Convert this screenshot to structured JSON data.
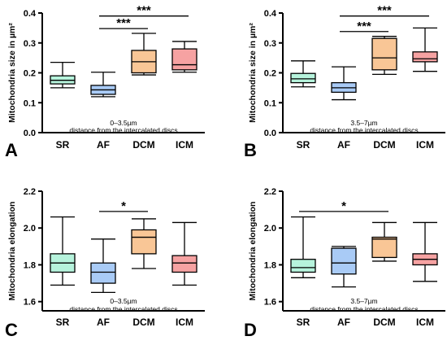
{
  "chart_data": [
    {
      "panel": "A",
      "type": "box",
      "ylabel": "Mitochondria size in µm²",
      "ylim": [
        0.0,
        0.4
      ],
      "yticks": [
        "0.0",
        "0.1",
        "0.2",
        "0.3",
        "0.4"
      ],
      "categories": [
        "SR",
        "AF",
        "DCM",
        "ICM"
      ],
      "caption_line1": "0–3.5µm",
      "caption_line2": "distance from the intercalated discs",
      "boxes": [
        {
          "min": 0.15,
          "q1": 0.163,
          "median": 0.175,
          "q3": 0.19,
          "max": 0.235
        },
        {
          "min": 0.12,
          "q1": 0.128,
          "median": 0.143,
          "q3": 0.158,
          "max": 0.202
        },
        {
          "min": 0.193,
          "q1": 0.2,
          "median": 0.237,
          "q3": 0.275,
          "max": 0.332
        },
        {
          "min": 0.202,
          "q1": 0.21,
          "median": 0.227,
          "q3": 0.28,
          "max": 0.305
        }
      ],
      "significance": [
        {
          "from": 1,
          "to": 3,
          "label": "***",
          "y": 0.39
        },
        {
          "from": 1,
          "to": 2,
          "label": "***",
          "y": 0.348
        }
      ]
    },
    {
      "panel": "B",
      "type": "box",
      "ylabel": "Mitochondria size in µm²",
      "ylim": [
        0.0,
        0.4
      ],
      "yticks": [
        "0.0",
        "0.1",
        "0.2",
        "0.3",
        "0.4"
      ],
      "categories": [
        "SR",
        "AF",
        "DCM",
        "ICM"
      ],
      "caption_line1": "3.5–7µm",
      "caption_line2": "distance from the intercalated discs",
      "boxes": [
        {
          "min": 0.153,
          "q1": 0.167,
          "median": 0.18,
          "q3": 0.198,
          "max": 0.24
        },
        {
          "min": 0.11,
          "q1": 0.135,
          "median": 0.15,
          "q3": 0.167,
          "max": 0.22
        },
        {
          "min": 0.195,
          "q1": 0.21,
          "median": 0.25,
          "q3": 0.315,
          "max": 0.322
        },
        {
          "min": 0.205,
          "q1": 0.237,
          "median": 0.247,
          "q3": 0.27,
          "max": 0.35
        }
      ],
      "significance": [
        {
          "from": 1,
          "to": 3,
          "label": "***",
          "y": 0.39
        },
        {
          "from": 1,
          "to": 2,
          "label": "***",
          "y": 0.338
        }
      ]
    },
    {
      "panel": "C",
      "type": "box",
      "ylabel": "Mitochondria elongation",
      "ylim": [
        1.55,
        2.2
      ],
      "yticks": [
        "1.6",
        "1.8",
        "2.0",
        "2.2"
      ],
      "categories": [
        "SR",
        "AF",
        "DCM",
        "ICM"
      ],
      "caption_line1": "0–3.5µm",
      "caption_line2": "distance from the intercalated discs",
      "boxes": [
        {
          "min": 1.69,
          "q1": 1.76,
          "median": 1.81,
          "q3": 1.86,
          "max": 2.06
        },
        {
          "min": 1.65,
          "q1": 1.7,
          "median": 1.76,
          "q3": 1.81,
          "max": 1.94
        },
        {
          "min": 1.78,
          "q1": 1.86,
          "median": 1.95,
          "q3": 1.99,
          "max": 2.05
        },
        {
          "min": 1.69,
          "q1": 1.76,
          "median": 1.81,
          "q3": 1.85,
          "max": 2.03
        }
      ],
      "significance": [
        {
          "from": 1,
          "to": 2,
          "label": "*",
          "y": 2.09
        }
      ]
    },
    {
      "panel": "D",
      "type": "box",
      "ylabel": "Mitochondria elongation",
      "ylim": [
        1.55,
        2.2
      ],
      "yticks": [
        "1.6",
        "1.8",
        "2.0",
        "2.2"
      ],
      "categories": [
        "SR",
        "AF",
        "DCM",
        "ICM"
      ],
      "caption_line1": "3.5–7µm",
      "caption_line2": "distance from the intercalated discs",
      "boxes": [
        {
          "min": 1.73,
          "q1": 1.76,
          "median": 1.785,
          "q3": 1.83,
          "max": 2.06
        },
        {
          "min": 1.68,
          "q1": 1.75,
          "median": 1.81,
          "q3": 1.89,
          "max": 1.9
        },
        {
          "min": 1.82,
          "q1": 1.84,
          "median": 1.94,
          "q3": 1.95,
          "max": 2.03
        },
        {
          "min": 1.71,
          "q1": 1.8,
          "median": 1.83,
          "q3": 1.86,
          "max": 2.03
        }
      ],
      "significance": [
        {
          "from": 0,
          "to": 2,
          "label": "*",
          "y": 2.09
        }
      ]
    }
  ],
  "colors": {
    "SR": "#b6f3dc",
    "AF": "#a9cbf6",
    "DCM": "#f9c696",
    "ICM": "#f6a2a2"
  }
}
